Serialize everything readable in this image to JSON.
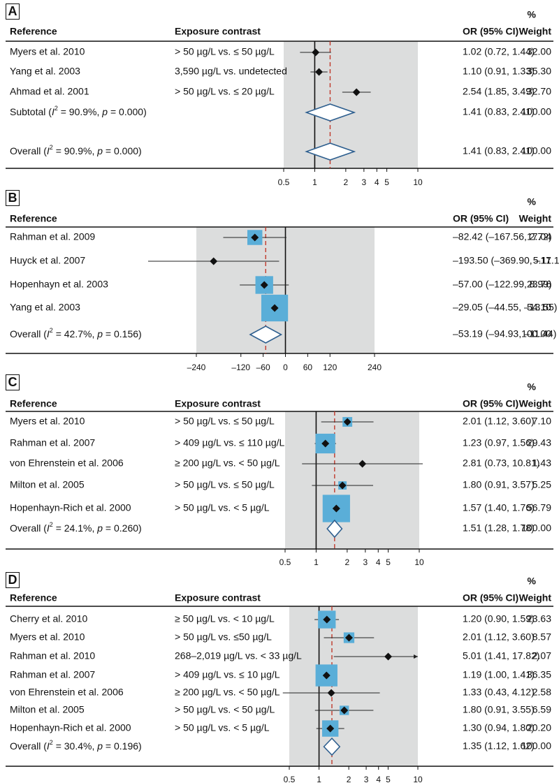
{
  "header": {
    "reference": "Reference",
    "exposure": "Exposure contrast",
    "or": "OR (95% CI)",
    "pct": "%",
    "weight": "Weight"
  },
  "colors": {
    "band": "#dcdddd",
    "box": "#5aaed8",
    "dashed": "#c0392b",
    "diamond": "#2e5f8f",
    "marker": "#111111"
  },
  "chart_data": [
    {
      "panel": "A",
      "type": "forest",
      "scale": "log",
      "has_exposure": true,
      "ticks": [
        0.5,
        1,
        2,
        3,
        4,
        5,
        10
      ],
      "tick_labels": [
        "0.5",
        "1",
        "2",
        "3",
        "4",
        "5",
        "10"
      ],
      "null_value": 1,
      "overall_estimate": 1.41,
      "rows": [
        {
          "ref": "Myers et al. 2010",
          "exp": "> 50 µg/L vs. ≤ 50 µg/L",
          "est": 1.02,
          "lo": 0.72,
          "hi": 1.44,
          "or_text": "1.02 (0.72, 1.44)",
          "weight": "32.00",
          "kind": "study",
          "box": false
        },
        {
          "ref": "Yang et al. 2003",
          "exp": "3,590 µg/L vs. undetected",
          "est": 1.1,
          "lo": 0.91,
          "hi": 1.33,
          "or_text": "1.10 (0.91, 1.33)",
          "weight": "35.30",
          "kind": "study",
          "box": false
        },
        {
          "ref": "Ahmad et al. 2001",
          "exp": "> 50 µg/L vs. ≤ 20 µg/L",
          "est": 2.54,
          "lo": 1.85,
          "hi": 3.49,
          "or_text": "2.54 (1.85, 3.49)",
          "weight": "32.70",
          "kind": "study",
          "box": false
        },
        {
          "ref": "Subtotal (I2 = 90.9%, p = 0.000)",
          "ref_pre": "Subtotal (",
          "ref_i": "I",
          "ref_sup": "2",
          "ref_mid": " = 90.9%, ",
          "ref_p": "p",
          "ref_post": " = 0.000)",
          "exp": "",
          "est": 1.41,
          "lo": 0.83,
          "hi": 2.41,
          "or_text": "1.41 (0.83, 2.41)",
          "weight": "100.00",
          "kind": "diamond"
        },
        {
          "ref": "Overall (I2 = 90.9%, p = 0.000)",
          "ref_pre": "Overall (",
          "ref_i": "I",
          "ref_sup": "2",
          "ref_mid": " = 90.9%, ",
          "ref_p": "p",
          "ref_post": " = 0.000)",
          "exp": "",
          "est": 1.41,
          "lo": 0.83,
          "hi": 2.41,
          "or_text": "1.41 (0.83, 2.41)",
          "weight": "100.00",
          "kind": "diamond"
        }
      ]
    },
    {
      "panel": "B",
      "type": "forest",
      "scale": "linear",
      "has_exposure": false,
      "ticks": [
        -240,
        -120,
        -60,
        0,
        60,
        120,
        240
      ],
      "tick_labels": [
        "–240",
        "–120",
        "–60",
        "0",
        "60",
        "120",
        "240"
      ],
      "xlim": [
        -240,
        240
      ],
      "null_value": 0,
      "overall_estimate": -53.19,
      "rows": [
        {
          "ref": "Rahman et al. 2009",
          "est": -82.42,
          "lo": -167.56,
          "hi": 2.72,
          "or_text": "–82.42 (–167.56, 2.72)",
          "weight": "17.04",
          "kind": "study",
          "box": true,
          "w": 17.04
        },
        {
          "ref": "Huyck et al. 2007",
          "est": -193.5,
          "lo": -369.9,
          "hi": -17.1,
          "or_text": "–193.50 (–369.90, –17.10)",
          "weight": "5.11",
          "kind": "study",
          "box": false,
          "w": 5.11
        },
        {
          "ref": "Hopenhayn et al. 2003",
          "est": -57.0,
          "lo": -122.99,
          "hi": 8.99,
          "or_text": "–57.00 (–122.99, 8.99)",
          "weight": "23.76",
          "kind": "study",
          "box": true,
          "w": 23.76
        },
        {
          "ref": "Yang et al. 2003",
          "est": -29.05,
          "lo": -44.55,
          "hi": -13.55,
          "or_text": "–29.05 (–44.55, –13.55)",
          "weight": "54.10",
          "kind": "study",
          "box": true,
          "w": 54.1
        },
        {
          "ref": "Overall (I2 = 42.7%, p = 0.156)",
          "ref_pre": "Overall (",
          "ref_i": "I",
          "ref_sup": "2",
          "ref_mid": " = 42.7%, ",
          "ref_p": "p",
          "ref_post": " = 0.156)",
          "est": -53.19,
          "lo": -94.93,
          "hi": -11.44,
          "or_text": "–53.19 (–94.93, –11.44)",
          "weight": "100.00",
          "kind": "diamond"
        }
      ]
    },
    {
      "panel": "C",
      "type": "forest",
      "scale": "log",
      "has_exposure": true,
      "ticks": [
        0.5,
        1,
        2,
        3,
        4,
        5,
        10
      ],
      "tick_labels": [
        "0.5",
        "1",
        "2",
        "3",
        "4",
        "5",
        "10"
      ],
      "null_value": 1,
      "overall_estimate": 1.51,
      "rows": [
        {
          "ref": "Myers et al. 2010",
          "exp": "> 50 µg/L vs. ≤ 50 µg/L",
          "est": 2.01,
          "lo": 1.12,
          "hi": 3.6,
          "or_text": "2.01 (1.12, 3.60)",
          "weight": "7.10",
          "kind": "study",
          "box": true,
          "w": 7.1
        },
        {
          "ref": "Rahman et al. 2007",
          "exp": "> 409 µg/L vs. ≤ 110 µg/L",
          "est": 1.23,
          "lo": 0.97,
          "hi": 1.56,
          "or_text": "1.23 (0.97, 1.56)",
          "weight": "29.43",
          "kind": "study",
          "box": true,
          "w": 29.43
        },
        {
          "ref": "von Ehrenstein et al. 2006",
          "exp": "≥ 200 µg/L vs. < 50 µg/L",
          "est": 2.81,
          "lo": 0.73,
          "hi": 10.81,
          "or_text": "2.81 (0.73, 10.81)",
          "weight": "1.43",
          "kind": "study",
          "box": false,
          "w": 1.43
        },
        {
          "ref": "Milton et al. 2005",
          "exp": "> 50 µg/L vs. ≤ 50 µg/L",
          "est": 1.8,
          "lo": 0.91,
          "hi": 3.57,
          "or_text": "1.80 (0.91, 3.57)",
          "weight": "5.25",
          "kind": "study",
          "box": true,
          "w": 5.25
        },
        {
          "ref": "Hopenhayn-Rich et al. 2000",
          "exp": "> 50 µg/L vs. < 5 µg/L",
          "est": 1.57,
          "lo": 1.4,
          "hi": 1.76,
          "or_text": "1.57 (1.40, 1.76)",
          "weight": "56.79",
          "kind": "study",
          "box": true,
          "w": 56.79
        },
        {
          "ref": "Overall (I2 = 24.1%, p = 0.260)",
          "ref_pre": "Overall (",
          "ref_i": "I",
          "ref_sup": "2",
          "ref_mid": " = 24.1%, ",
          "ref_p": "p",
          "ref_post": " = 0.260)",
          "exp": "",
          "est": 1.51,
          "lo": 1.28,
          "hi": 1.78,
          "or_text": "1.51 (1.28, 1.78)",
          "weight": "100.00",
          "kind": "diamond"
        }
      ]
    },
    {
      "panel": "D",
      "type": "forest",
      "scale": "log",
      "has_exposure": true,
      "ticks": [
        0.5,
        1,
        2,
        3,
        4,
        5,
        10
      ],
      "tick_labels": [
        "0.5",
        "1",
        "2",
        "3",
        "4",
        "5",
        "10"
      ],
      "null_value": 1,
      "overall_estimate": 1.35,
      "rows": [
        {
          "ref": "Cherry et al. 2010",
          "exp": "≥ 50 µg/L vs. < 10 µg/L",
          "est": 1.2,
          "lo": 0.9,
          "hi": 1.59,
          "or_text": "1.20 (0.90, 1.59)",
          "weight": "23.63",
          "kind": "study",
          "box": true,
          "w": 23.63
        },
        {
          "ref": "Myers et al. 2010",
          "exp": "> 50 µg/L vs. ≤50 µg/L",
          "est": 2.01,
          "lo": 1.12,
          "hi": 3.6,
          "or_text": "2.01 (1.12, 3.60)",
          "weight": "8.57",
          "kind": "study",
          "box": true,
          "w": 8.57
        },
        {
          "ref": "Rahman et al. 2010",
          "exp": "268–2,019 µg/L vs. < 33 µg/L",
          "est": 5.01,
          "lo": 1.41,
          "hi": 17.82,
          "or_text": "5.01 (1.41, 17.82)",
          "weight": "2.07",
          "kind": "study",
          "box": false,
          "w": 2.07,
          "arrow": true
        },
        {
          "ref": "Rahman et al. 2007",
          "exp": "> 409 µg/L vs. ≤ 10 µg/L",
          "est": 1.19,
          "lo": 1.0,
          "hi": 1.41,
          "or_text": "1.19 (1.00, 1.41)",
          "weight": "36.35",
          "kind": "study",
          "box": true,
          "w": 36.35
        },
        {
          "ref": "von Ehrenstein et al. 2006",
          "exp": "≥ 200 µg/L vs. < 50 µg/L",
          "est": 1.33,
          "lo": 0.43,
          "hi": 4.12,
          "or_text": "1.33 (0.43, 4.12)",
          "weight": "2.58",
          "kind": "study",
          "box": false,
          "w": 2.58
        },
        {
          "ref": "Milton et al. 2005",
          "exp": "> 50 µg/L vs. < 50 µg/L",
          "est": 1.8,
          "lo": 0.91,
          "hi": 3.55,
          "or_text": "1.80 (0.91, 3.55)",
          "weight": "6.59",
          "kind": "study",
          "box": true,
          "w": 6.59
        },
        {
          "ref": "Hopenhayn-Rich et al. 2000",
          "exp": "> 50 µg/L vs. < 5 µg/L",
          "est": 1.3,
          "lo": 0.94,
          "hi": 1.8,
          "or_text": "1.30 (0.94, 1.80)",
          "weight": "20.20",
          "kind": "study",
          "box": true,
          "w": 20.2
        },
        {
          "ref": "Overall (I2 = 30.4%, p = 0.196)",
          "ref_pre": "Overall (",
          "ref_i": "I",
          "ref_sup": "2",
          "ref_mid": " = 30.4%, ",
          "ref_p": "p",
          "ref_post": " = 0.196)",
          "exp": "",
          "est": 1.35,
          "lo": 1.12,
          "hi": 1.62,
          "or_text": "1.35 (1.12, 1.62)",
          "weight": "100.00",
          "kind": "diamond"
        }
      ]
    }
  ]
}
